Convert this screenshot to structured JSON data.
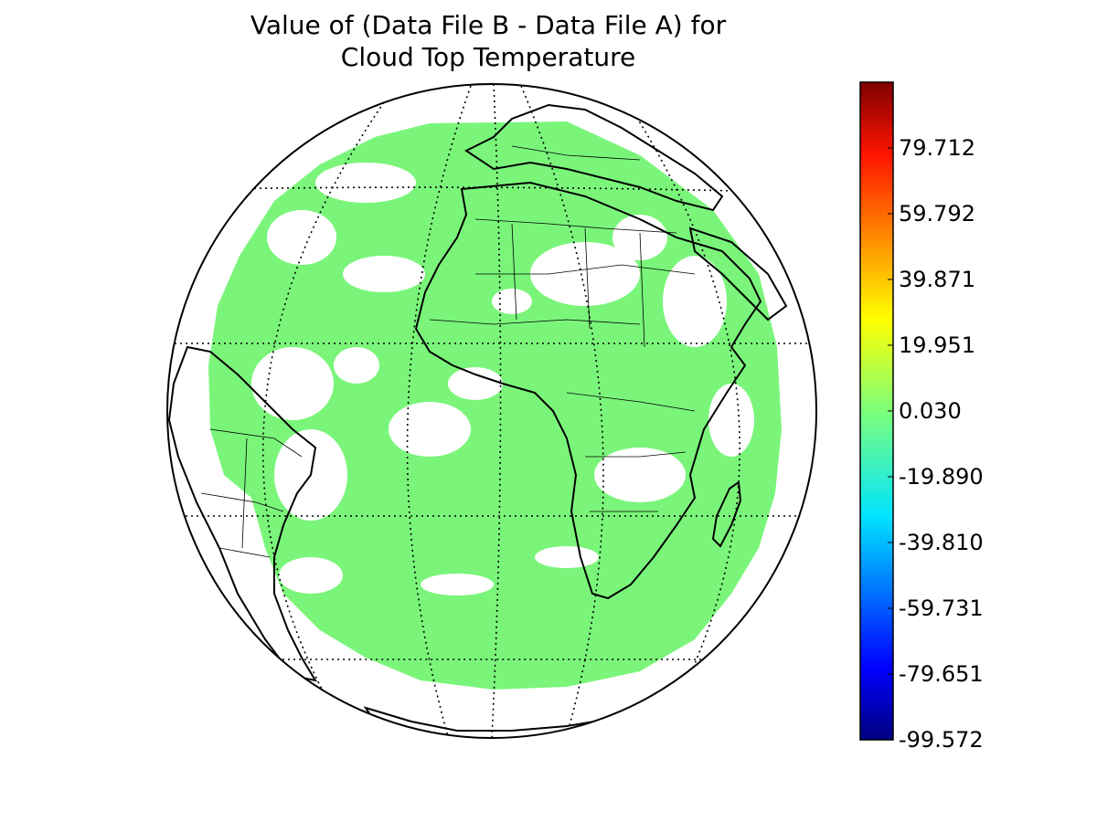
{
  "figure": {
    "title_line1": "Value of (Data File B - Data File A) for",
    "title_line2": "Cloud Top Temperature"
  },
  "map": {
    "projection": "orthographic",
    "variable": "Cloud Top Temperature difference (Data File B - Data File A)",
    "field_color": "#7af57a",
    "coastline_color": "#000000",
    "graticule_style": "dotted",
    "data_coverage": "full-disk"
  },
  "colorbar": {
    "colormap": "jet",
    "range": [
      -99.572,
      99.612
    ],
    "tick_labels": [
      "79.712",
      "59.792",
      "39.871",
      "19.951",
      "0.030",
      "-19.890",
      "-39.810",
      "-59.731",
      "-79.651",
      "-99.572"
    ],
    "tick_values": [
      79.712,
      59.792,
      39.871,
      19.951,
      0.03,
      -19.89,
      -39.81,
      -59.731,
      -79.651,
      -99.572
    ]
  }
}
